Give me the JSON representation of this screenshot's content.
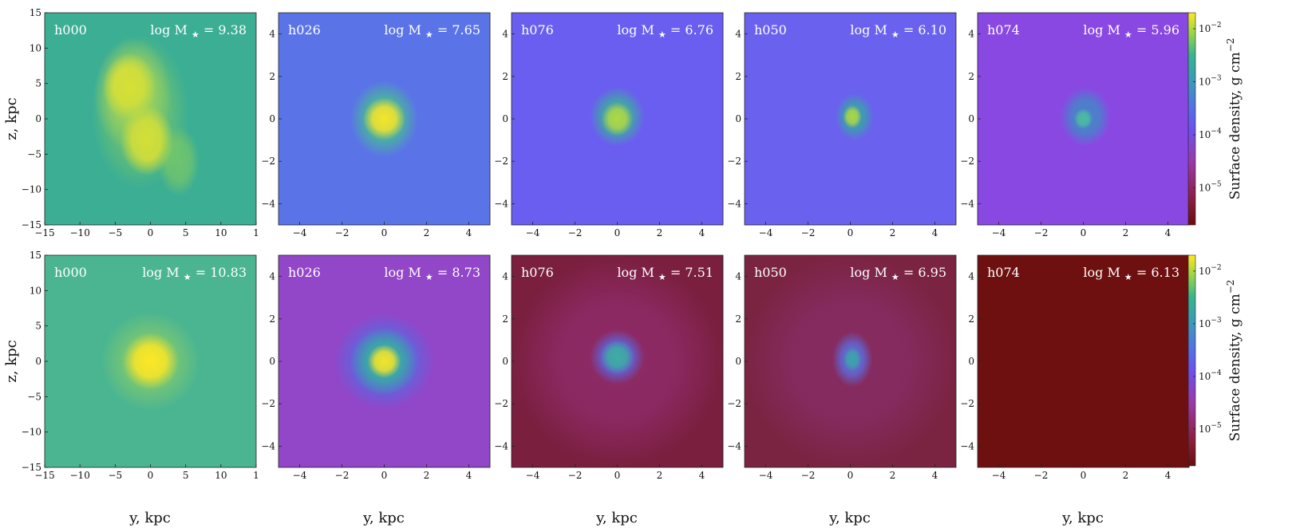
{
  "chart_data": {
    "type": "heatmap",
    "colormap": "viridis-to-dark-red",
    "colorbar": {
      "label": "Surface density, g cm",
      "label_superscript": "−2",
      "scale": "log",
      "ticks": [
        {
          "base": "10",
          "exp": "−2",
          "value": 0.01
        },
        {
          "base": "10",
          "exp": "−3",
          "value": 0.001
        },
        {
          "base": "10",
          "exp": "−4",
          "value": 0.0001
        },
        {
          "base": "10",
          "exp": "−5",
          "value": 1e-05
        }
      ],
      "range": [
        2e-06,
        0.02
      ]
    },
    "rows": [
      {
        "panels": [
          {
            "name": "h000",
            "mass_prefix": "log M",
            "star": "★",
            "mass_value": "= 9.38",
            "extent": 15,
            "xticks": [
              "−15",
              "−10",
              "−5",
              "0",
              "5",
              "10",
              "1"
            ],
            "yticks": [
              "15",
              "10",
              "5",
              "0",
              "−5",
              "−10",
              "−15"
            ],
            "background": "#3bae94",
            "blobs": [
              {
                "cx": -2.5,
                "cy": 3.5,
                "rx": 5.5,
                "ry": 8,
                "color": "#d8e34a",
                "opacity": 0.55
              },
              {
                "cx": -3,
                "cy": 4.5,
                "rx": 3.8,
                "ry": 4.8,
                "color": "#fde725",
                "opacity": 0.95
              },
              {
                "cx": -0.5,
                "cy": -3,
                "rx": 3.8,
                "ry": 5,
                "color": "#fde725",
                "opacity": 0.95
              },
              {
                "cx": -1.5,
                "cy": 1,
                "rx": 7,
                "ry": 11,
                "color": "#a6d84a",
                "opacity": 0.45
              },
              {
                "cx": 4,
                "cy": -6,
                "rx": 3,
                "ry": 5,
                "color": "#9fd94a",
                "opacity": 0.5
              }
            ]
          },
          {
            "name": "h026",
            "mass_prefix": "log M",
            "star": "★",
            "mass_value": "= 7.65",
            "extent": 5,
            "xticks": [
              "−4",
              "−2",
              "0",
              "2",
              "4"
            ],
            "yticks": [
              "4",
              "2",
              "0",
              "−2",
              "−4"
            ],
            "background": "#5a74e8",
            "blobs": [
              {
                "cx": 0,
                "cy": 0,
                "rx": 1.6,
                "ry": 1.8,
                "color": "#45c48a",
                "opacity": 0.85
              },
              {
                "cx": 0,
                "cy": 0,
                "rx": 1.0,
                "ry": 1.0,
                "color": "#fde725",
                "opacity": 0.95
              }
            ]
          },
          {
            "name": "h076",
            "mass_prefix": "log M",
            "star": "★",
            "mass_value": "= 6.76",
            "extent": 5,
            "xticks": [
              "−4",
              "−2",
              "0",
              "2",
              "4"
            ],
            "yticks": [
              "4",
              "2",
              "0",
              "−2",
              "−4"
            ],
            "background": "#6a5ef0",
            "blobs": [
              {
                "cx": 0,
                "cy": 0.1,
                "rx": 1.3,
                "ry": 1.4,
                "color": "#38b596",
                "opacity": 0.85
              },
              {
                "cx": 0,
                "cy": 0,
                "rx": 0.75,
                "ry": 0.8,
                "color": "#b9de3a",
                "opacity": 0.9
              }
            ]
          },
          {
            "name": "h050",
            "mass_prefix": "log M",
            "star": "★",
            "mass_value": "= 6.10",
            "extent": 5,
            "xticks": [
              "−4",
              "−2",
              "0",
              "2",
              "4"
            ],
            "yticks": [
              "4",
              "2",
              "0",
              "−2",
              "−4"
            ],
            "background": "#6a62ee",
            "blobs": [
              {
                "cx": 0.2,
                "cy": 0.1,
                "rx": 0.9,
                "ry": 1.1,
                "color": "#34a9a2",
                "opacity": 0.85
              },
              {
                "cx": 0.1,
                "cy": 0.1,
                "rx": 0.45,
                "ry": 0.55,
                "color": "#b5dd3c",
                "opacity": 0.9
              }
            ]
          },
          {
            "name": "h074",
            "mass_prefix": "log M",
            "star": "★",
            "mass_value": "= 5.96",
            "extent": 5,
            "xticks": [
              "−4",
              "−2",
              "0",
              "2",
              "4"
            ],
            "yticks": [
              "4",
              "2",
              "0",
              "−2",
              "−4"
            ],
            "background": "#8a48e3",
            "blobs": [
              {
                "cx": 0.1,
                "cy": 0.1,
                "rx": 1.2,
                "ry": 1.4,
                "color": "#3b8fc4",
                "opacity": 0.85
              },
              {
                "cx": 0,
                "cy": 0,
                "rx": 0.45,
                "ry": 0.5,
                "color": "#4cc59a",
                "opacity": 0.85
              }
            ]
          }
        ]
      },
      {
        "panels": [
          {
            "name": "h000",
            "mass_prefix": "log M",
            "star": "★",
            "mass_value": "= 10.83",
            "extent": 15,
            "xticks": [
              "−15",
              "−10",
              "−5",
              "0",
              "5",
              "10",
              "1"
            ],
            "yticks": [
              "15",
              "10",
              "5",
              "0",
              "−5",
              "−10",
              "−15"
            ],
            "background": "#4bb591",
            "blobs": [
              {
                "cx": 0,
                "cy": 0,
                "rx": 7,
                "ry": 7,
                "color": "#9ed55a",
                "opacity": 0.55
              },
              {
                "cx": 0,
                "cy": 0,
                "rx": 4,
                "ry": 4,
                "color": "#fde725",
                "opacity": 1
              }
            ]
          },
          {
            "name": "h026",
            "mass_prefix": "log M",
            "star": "★",
            "mass_value": "= 8.73",
            "extent": 5,
            "xticks": [
              "−4",
              "−2",
              "0",
              "2",
              "4"
            ],
            "yticks": [
              "4",
              "2",
              "0",
              "−2",
              "−4"
            ],
            "background": "#9246c8",
            "blobs": [
              {
                "cx": 0,
                "cy": 0,
                "rx": 2.4,
                "ry": 2.3,
                "color": "#4f6ee6",
                "opacity": 0.85
              },
              {
                "cx": 0,
                "cy": 0,
                "rx": 1.6,
                "ry": 1.6,
                "color": "#33b59a",
                "opacity": 0.9
              },
              {
                "cx": 0,
                "cy": 0,
                "rx": 0.8,
                "ry": 0.8,
                "color": "#fde725",
                "opacity": 0.95
              }
            ]
          },
          {
            "name": "h076",
            "mass_prefix": "log M",
            "star": "★",
            "mass_value": "= 7.51",
            "extent": 5,
            "xticks": [
              "−4",
              "−2",
              "0",
              "2",
              "4"
            ],
            "yticks": [
              "4",
              "2",
              "0",
              "−2",
              "−4"
            ],
            "background": "#7a1f3e",
            "blobs": [
              {
                "cx": 0,
                "cy": 0,
                "rx": 5,
                "ry": 5,
                "color": "#a5389a",
                "opacity": 0.45
              },
              {
                "cx": 0,
                "cy": 0.2,
                "rx": 1.3,
                "ry": 1.3,
                "color": "#5a6be6",
                "opacity": 0.9
              },
              {
                "cx": 0,
                "cy": 0.2,
                "rx": 0.8,
                "ry": 0.8,
                "color": "#3ab59e",
                "opacity": 0.9
              }
            ]
          },
          {
            "name": "h050",
            "mass_prefix": "log M",
            "star": "★",
            "mass_value": "= 6.95",
            "extent": 5,
            "xticks": [
              "−4",
              "−2",
              "0",
              "2",
              "4"
            ],
            "yticks": [
              "4",
              "2",
              "0",
              "−2",
              "−4"
            ],
            "background": "#7b2442",
            "blobs": [
              {
                "cx": 0,
                "cy": 0,
                "rx": 5,
                "ry": 5,
                "color": "#9b3aa0",
                "opacity": 0.35
              },
              {
                "cx": 0.1,
                "cy": 0.1,
                "rx": 0.95,
                "ry": 1.3,
                "color": "#5b70e4",
                "opacity": 0.9
              },
              {
                "cx": 0.1,
                "cy": 0.1,
                "rx": 0.45,
                "ry": 0.6,
                "color": "#3aa9a6",
                "opacity": 0.9
              }
            ]
          },
          {
            "name": "h074",
            "mass_prefix": "log M",
            "star": "★",
            "mass_value": "= 6.13",
            "extent": 5,
            "xticks": [
              "−4",
              "−2",
              "0",
              "2",
              "4"
            ],
            "yticks": [
              "4",
              "2",
              "0",
              "−2",
              "−4"
            ],
            "background": "#6e1010",
            "blobs": []
          }
        ]
      }
    ],
    "xlabel": "y, kpc",
    "ylabel": "z, kpc"
  }
}
